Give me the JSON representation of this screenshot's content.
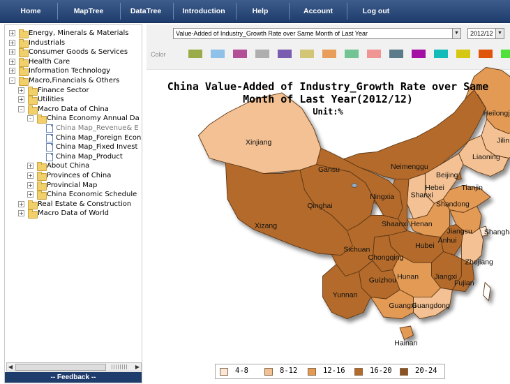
{
  "nav": {
    "items": [
      "Home",
      "MapTree",
      "DataTree",
      "Introduction",
      "Help",
      "Account",
      "Log out"
    ]
  },
  "tree": {
    "items": [
      {
        "label": "Energy, Minerals & Materials",
        "level": 0,
        "type": "folder",
        "expander": "+"
      },
      {
        "label": "Industrials",
        "level": 0,
        "type": "folder",
        "expander": "+"
      },
      {
        "label": "Consumer Goods & Services",
        "level": 0,
        "type": "folder",
        "expander": "+"
      },
      {
        "label": "Health Care",
        "level": 0,
        "type": "folder",
        "expander": "+"
      },
      {
        "label": "Information Technology",
        "level": 0,
        "type": "folder",
        "expander": "+"
      },
      {
        "label": "Macro,Financials & Others",
        "level": 0,
        "type": "folder",
        "expander": "-"
      },
      {
        "label": "Finance Sector",
        "level": 1,
        "type": "folder",
        "expander": "+"
      },
      {
        "label": "Utilities",
        "level": 1,
        "type": "folder",
        "expander": "+"
      },
      {
        "label": "Macro Data of China",
        "level": 1,
        "type": "folder",
        "expander": "-"
      },
      {
        "label": "China Economy Annual Da",
        "level": 2,
        "type": "folder",
        "expander": "-"
      },
      {
        "label": "China Map_Revenue& E",
        "level": 3,
        "type": "doc",
        "expander": "",
        "dim": true
      },
      {
        "label": "China Map_Foreign Econ",
        "level": 3,
        "type": "doc",
        "expander": ""
      },
      {
        "label": "China Map_Fixed Invest",
        "level": 3,
        "type": "doc",
        "expander": ""
      },
      {
        "label": "China Map_Product",
        "level": 3,
        "type": "doc",
        "expander": ""
      },
      {
        "label": "About China",
        "level": 2,
        "type": "folder",
        "expander": "+"
      },
      {
        "label": "Provinces of China",
        "level": 2,
        "type": "folder",
        "expander": "+"
      },
      {
        "label": "Provincial Map",
        "level": 2,
        "type": "folder",
        "expander": "+"
      },
      {
        "label": "China Economic Schedule",
        "level": 2,
        "type": "folder",
        "expander": "+"
      },
      {
        "label": "Real Estate & Construction",
        "level": 1,
        "type": "folder",
        "expander": "+"
      },
      {
        "label": "Macro Data of World",
        "level": 1,
        "type": "folder",
        "expander": "+"
      }
    ]
  },
  "feedback": "-- Feedback --",
  "toolbar": {
    "indicator": "Value-Added of Industry_Growth Rate over Same Month of Last Year",
    "period": "2012/12",
    "color_label": "Color",
    "swatches": [
      "#9aac4a",
      "#8fc1e9",
      "#b24f97",
      "#aeaeae",
      "#7a5cb0",
      "#d2c576",
      "#e99d5a",
      "#72c493",
      "#ef9695",
      "#5b7b8b",
      "#a40fa6",
      "#13bcb9",
      "#d5c712",
      "#e0540a",
      "#4fe23a"
    ]
  },
  "title": "China   Value-Added of Industry_Growth Rate over Same Month of Last Year(2012/12)",
  "unit": "Unit:%",
  "legend": [
    {
      "label": "4-8",
      "color": "#fbe7d7"
    },
    {
      "label": "8-12",
      "color": "#f3c193"
    },
    {
      "label": "12-16",
      "color": "#e39a55"
    },
    {
      "label": "16-20",
      "color": "#b36a2a"
    },
    {
      "label": "20-24",
      "color": "#8c5222"
    }
  ],
  "map": {
    "provinces": [
      {
        "name": "Heilongjiang",
        "label": "Heilongjiang",
        "color": "#e39a55"
      },
      {
        "name": "Jilin",
        "label": "Jilin",
        "color": "#f3c193"
      },
      {
        "name": "Liaoning",
        "label": "Liaoning",
        "color": "#f3c193"
      },
      {
        "name": "Neimenggu",
        "label": "Neimenggu",
        "color": "#b36a2a"
      },
      {
        "name": "Beijing",
        "label": "Beijing",
        "color": "#f3c193"
      },
      {
        "name": "Tianjin",
        "label": "Tianjin",
        "color": "#b36a2a"
      },
      {
        "name": "Hebei",
        "label": "Hebei",
        "color": "#f3c193"
      },
      {
        "name": "Shanxi",
        "label": "Shanxi",
        "color": "#f3c193"
      },
      {
        "name": "Shandong",
        "label": "Shandong",
        "color": "#e39a55"
      },
      {
        "name": "Henan",
        "label": "Henan",
        "color": "#e39a55"
      },
      {
        "name": "Jiangsu",
        "label": "Jiangsu",
        "color": "#e39a55"
      },
      {
        "name": "Shanghai",
        "label": "Shanghai",
        "color": "#fbe7d7"
      },
      {
        "name": "Anhui",
        "label": "Anhui",
        "color": "#b36a2a"
      },
      {
        "name": "Zhejiang",
        "label": "Zhejiang",
        "color": "#f3c193"
      },
      {
        "name": "Jiangxi",
        "label": "Jiangxi",
        "color": "#b36a2a"
      },
      {
        "name": "Fujian",
        "label": "Fujian",
        "color": "#b36a2a"
      },
      {
        "name": "Hubei",
        "label": "Hubei",
        "color": "#b36a2a"
      },
      {
        "name": "Hunan",
        "label": "Hunan",
        "color": "#e39a55"
      },
      {
        "name": "Guangdong",
        "label": "Guangdong",
        "color": "#f3c193"
      },
      {
        "name": "Guangxi",
        "label": "Guangxi",
        "color": "#e39a55"
      },
      {
        "name": "Hainan",
        "label": "Hainan",
        "color": "#e39a55"
      },
      {
        "name": "Chongqing",
        "label": "Chongqing",
        "color": "#b36a2a"
      },
      {
        "name": "Sichuan",
        "label": "Sichuan",
        "color": "#b36a2a"
      },
      {
        "name": "Guizhou",
        "label": "Guizhou",
        "color": "#b36a2a"
      },
      {
        "name": "Yunnan",
        "label": "Yunnan",
        "color": "#b36a2a"
      },
      {
        "name": "Shaanxi",
        "label": "Shaanxi",
        "color": "#b36a2a"
      },
      {
        "name": "Ningxia",
        "label": "Ningxia",
        "color": "#b36a2a"
      },
      {
        "name": "Gansu",
        "label": "Gansu",
        "color": "#b36a2a"
      },
      {
        "name": "Qinghai",
        "label": "Qinghai",
        "color": "#b36a2a"
      },
      {
        "name": "Xizang",
        "label": "Xizang",
        "color": "#b36a2a"
      },
      {
        "name": "Xinjiang",
        "label": "Xinjiang",
        "color": "#f3c193"
      }
    ]
  }
}
